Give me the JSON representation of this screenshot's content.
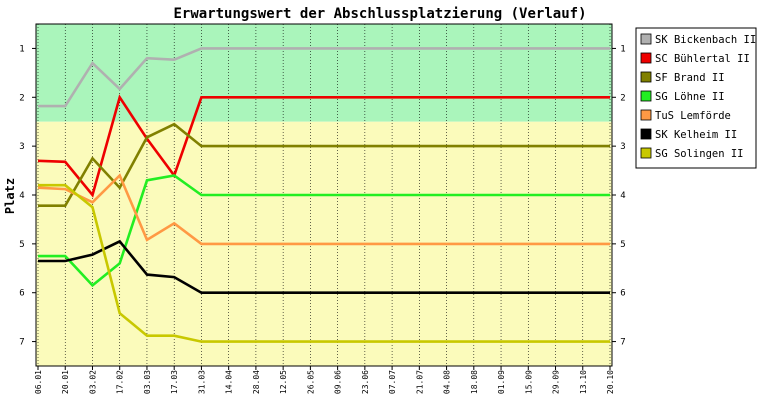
{
  "chart_data": {
    "type": "line",
    "title": "Erwartungswert der Abschlussplatzierung (Verlauf)",
    "ylabel": "Platz",
    "xlabel": "",
    "y_ticks": [
      1,
      2,
      3,
      4,
      5,
      6,
      7
    ],
    "ylim": [
      0.5,
      7.5
    ],
    "y_inverted": true,
    "bands": [
      {
        "from": 0.5,
        "to": 2.5,
        "color": "#aaf5bb"
      },
      {
        "from": 2.5,
        "to": 7.5,
        "color": "#fbfbbb"
      }
    ],
    "x": [
      "06.01",
      "20.01",
      "03.02",
      "17.02",
      "03.03",
      "17.03",
      "31.03",
      "14.04",
      "28.04",
      "12.05",
      "26.05",
      "09.06",
      "23.06",
      "07.07",
      "21.07",
      "04.08",
      "18.08",
      "01.09",
      "15.09",
      "29.09",
      "13.10",
      "20.10"
    ],
    "legend_position": "right",
    "series": [
      {
        "name": "SK Bickenbach II",
        "color": "#b0b0b0",
        "values": [
          2.18,
          2.18,
          1.3,
          1.83,
          1.2,
          1.23,
          1,
          1,
          1,
          1,
          1,
          1,
          1,
          1,
          1,
          1,
          1,
          1,
          1,
          1,
          1,
          1
        ]
      },
      {
        "name": "SC Bühlertal II",
        "color": "#ee0000",
        "values": [
          3.3,
          3.32,
          4.0,
          2.0,
          2.85,
          3.6,
          2,
          2,
          2,
          2,
          2,
          2,
          2,
          2,
          2,
          2,
          2,
          2,
          2,
          2,
          2,
          2
        ]
      },
      {
        "name": "SF Brand II",
        "color": "#808000",
        "values": [
          4.22,
          4.22,
          3.25,
          3.85,
          2.82,
          2.55,
          3,
          3,
          3,
          3,
          3,
          3,
          3,
          3,
          3,
          3,
          3,
          3,
          3,
          3,
          3,
          3
        ]
      },
      {
        "name": "SG Löhne II",
        "color": "#22ee22",
        "values": [
          5.25,
          5.25,
          5.85,
          5.4,
          3.7,
          3.6,
          4,
          4,
          4,
          4,
          4,
          4,
          4,
          4,
          4,
          4,
          4,
          4,
          4,
          4,
          4,
          4
        ]
      },
      {
        "name": "TuS Lemförde",
        "color": "#ff9944",
        "values": [
          3.85,
          3.88,
          4.15,
          3.6,
          4.92,
          4.58,
          5,
          5,
          5,
          5,
          5,
          5,
          5,
          5,
          5,
          5,
          5,
          5,
          5,
          5,
          5,
          5
        ]
      },
      {
        "name": "SK Kelheim II",
        "color": "#000000",
        "values": [
          5.35,
          5.35,
          5.22,
          4.95,
          5.63,
          5.68,
          6,
          6,
          6,
          6,
          6,
          6,
          6,
          6,
          6,
          6,
          6,
          6,
          6,
          6,
          6,
          6
        ]
      },
      {
        "name": "SG Solingen II",
        "color": "#c8c800",
        "values": [
          3.8,
          3.8,
          4.25,
          6.42,
          6.88,
          6.88,
          7,
          7,
          7,
          7,
          7,
          7,
          7,
          7,
          7,
          7,
          7,
          7,
          7,
          7,
          7,
          7
        ]
      }
    ]
  }
}
